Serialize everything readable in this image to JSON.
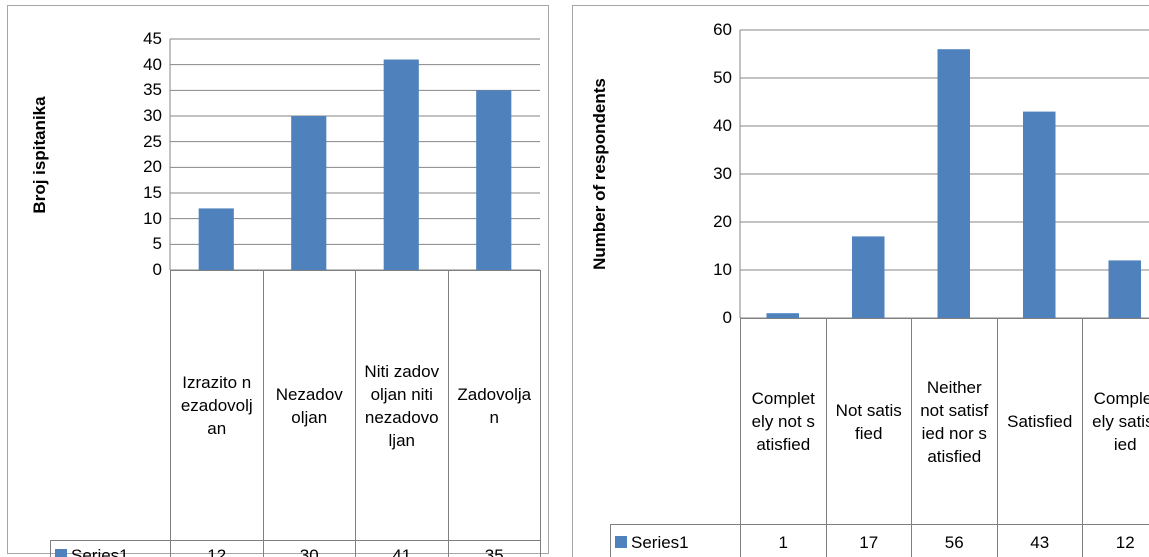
{
  "chart_data": [
    {
      "type": "bar",
      "y_label": "Broj ispitanika",
      "series_name": "Series1",
      "color": "#4f81bd",
      "categories": [
        "Izrazito nezadovoljan",
        "Nezadovoljan",
        "Niti zadovoljan niti nezadovoljan",
        "Zadovoljan"
      ],
      "values": [
        12,
        30,
        41,
        35
      ],
      "ylim": [
        0,
        45
      ],
      "yticks": [
        0,
        5,
        10,
        15,
        20,
        25,
        30,
        35,
        40,
        45
      ],
      "grid": true
    },
    {
      "type": "bar",
      "y_label": "Number of respondents",
      "series_name": "Series1",
      "color": "#4f81bd",
      "categories": [
        "Completely not satisfied",
        "Not satisfied",
        "Neither not satisfied nor satisfied",
        "Satisfied",
        "Completely satisfied"
      ],
      "values": [
        1,
        17,
        56,
        43,
        12
      ],
      "ylim": [
        0,
        60
      ],
      "yticks": [
        0,
        10,
        20,
        30,
        40,
        50,
        60
      ],
      "grid": true
    }
  ]
}
